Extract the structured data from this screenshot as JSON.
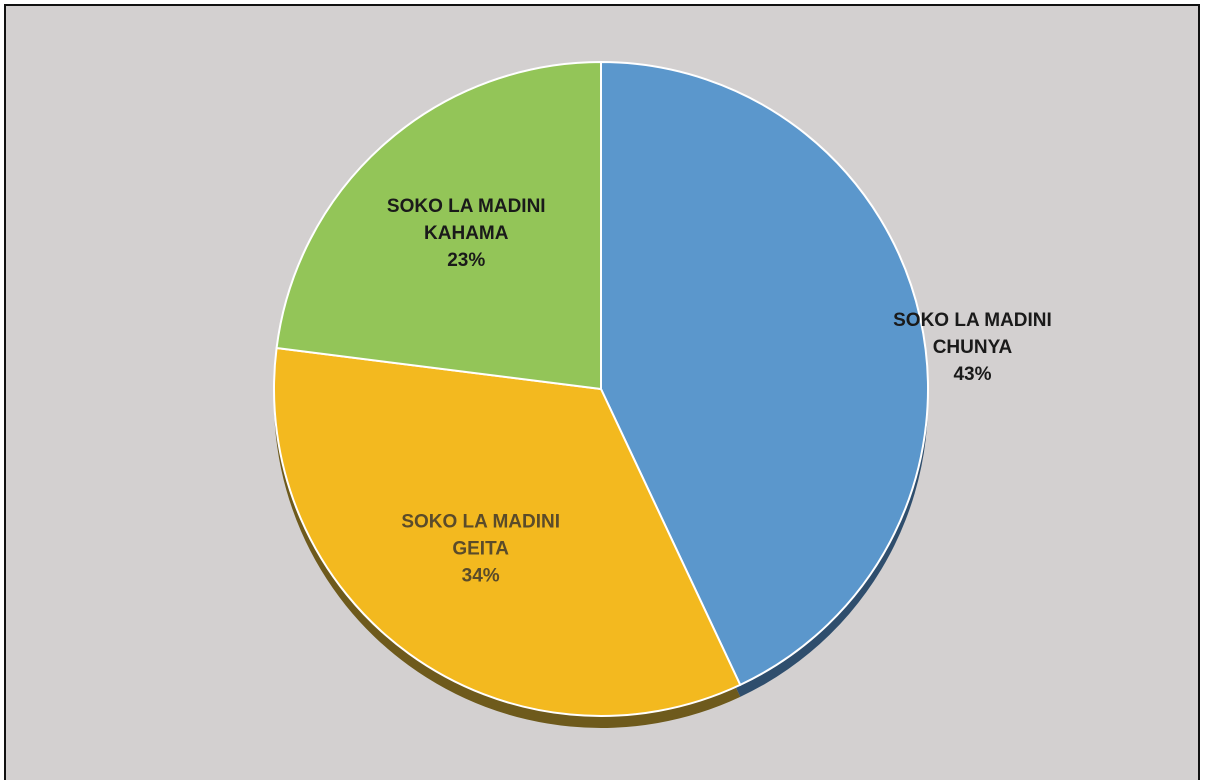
{
  "chart_data": {
    "type": "pie",
    "title": "",
    "legend": "none",
    "slices": [
      {
        "name": "SOKO LA MADINI CHUNYA",
        "label_lines": [
          "SOKO LA MADINI",
          "CHUNYA"
        ],
        "value": 43,
        "value_label": "43%",
        "color": "#5b97cc",
        "side_color": "#2f4e6d",
        "text_color": "#1a1a1a"
      },
      {
        "name": "SOKO LA MADINI GEITA",
        "label_lines": [
          "SOKO LA MADINI",
          "GEITA"
        ],
        "value": 34,
        "value_label": "34%",
        "color": "#f3b91f",
        "side_color": "#6e5a1c",
        "text_color": "#5a4b2a"
      },
      {
        "name": "SOKO LA MADINI KAHAMA",
        "label_lines": [
          "SOKO LA MADINI",
          "KAHAMA"
        ],
        "value": 23,
        "value_label": "23%",
        "color": "#93c558",
        "side_color": "#4d6a2c",
        "text_color": "#1a1a1a"
      }
    ]
  }
}
